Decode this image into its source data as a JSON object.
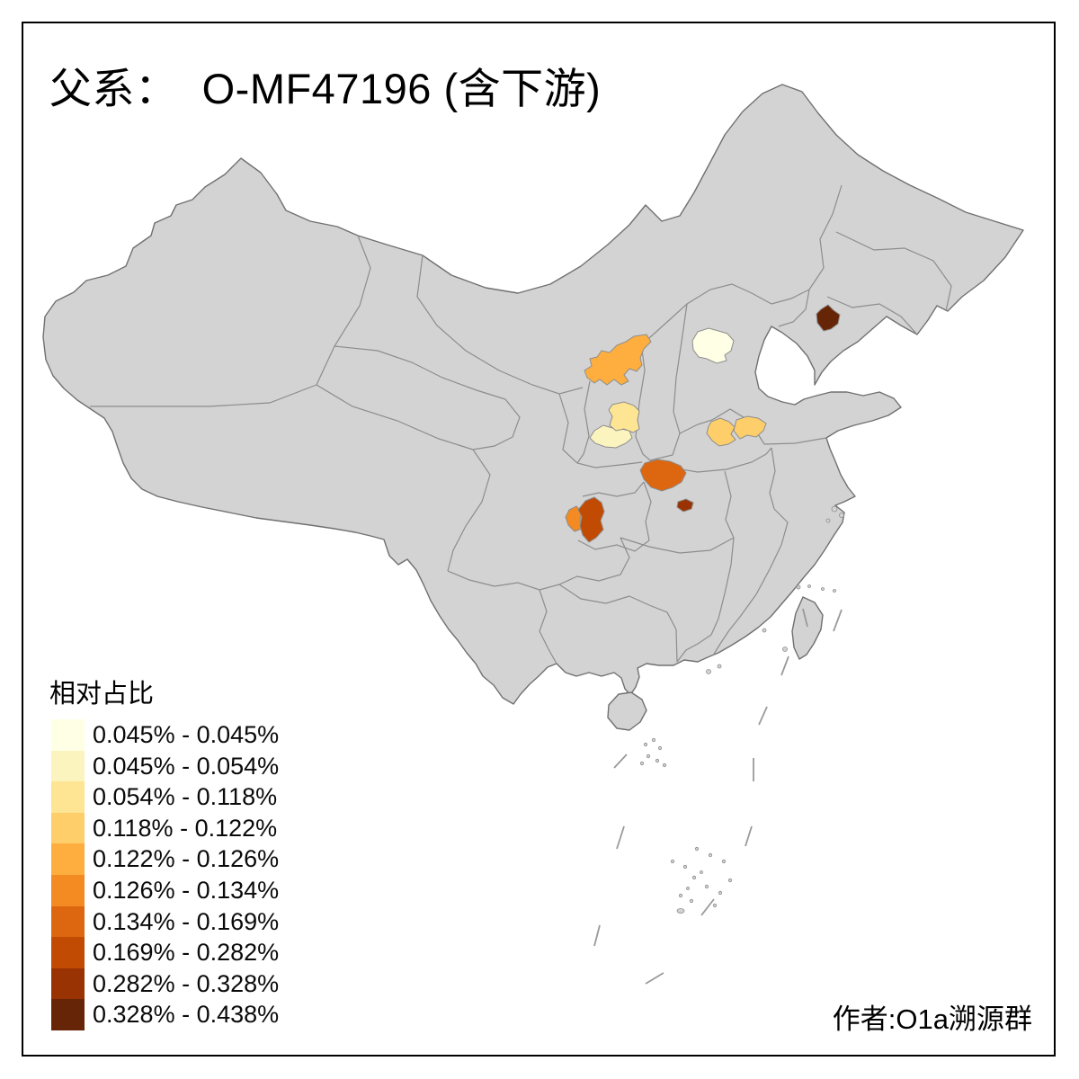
{
  "title": {
    "text": "父系：  O-MF47196 (含下游)"
  },
  "legend": {
    "title": "相对占比",
    "classes": [
      {
        "label": "0.045% - 0.045%",
        "color": "#FFFFE5"
      },
      {
        "label": "0.045% - 0.054%",
        "color": "#FCF4BF"
      },
      {
        "label": "0.054% - 0.118%",
        "color": "#FEE593"
      },
      {
        "label": "0.118% - 0.122%",
        "color": "#FDCE6A"
      },
      {
        "label": "0.122% - 0.126%",
        "color": "#FDAE3F"
      },
      {
        "label": "0.126% - 0.134%",
        "color": "#F38A22"
      },
      {
        "label": "0.134% - 0.169%",
        "color": "#DD6610"
      },
      {
        "label": "0.169% - 0.282%",
        "color": "#C24B03"
      },
      {
        "label": "0.282% - 0.328%",
        "color": "#993303"
      },
      {
        "label": "0.328% - 0.438%",
        "color": "#662506"
      }
    ]
  },
  "attribution": "作者:O1a溯源群",
  "map": {
    "background": "#ffffff",
    "base_fill": "#d3d3d3",
    "outline_color": "#707070",
    "inner_border_color": "#8d8d8d",
    "islet_color": "#bdbdbd",
    "dash_color": "#9a9a9a",
    "regions": [
      {
        "id": "r1",
        "area": "beijing-area",
        "class_index": 0
      },
      {
        "id": "r2",
        "area": "central-shaanxi-south",
        "class_index": 1
      },
      {
        "id": "r3",
        "area": "central-shaanxi-north",
        "class_index": 2
      },
      {
        "id": "r4",
        "area": "henan-west",
        "class_index": 3
      },
      {
        "id": "r5",
        "area": "henan-east",
        "class_index": 3
      },
      {
        "id": "r6",
        "area": "ningxia-north-shaanxi",
        "class_index": 4
      },
      {
        "id": "r7",
        "area": "chongqing-west",
        "class_index": 5
      },
      {
        "id": "r8",
        "area": "south-shaanxi",
        "class_index": 6
      },
      {
        "id": "r9",
        "area": "chongqing-main",
        "class_index": 7
      },
      {
        "id": "r10",
        "area": "west-hubei",
        "class_index": 8
      },
      {
        "id": "r11",
        "area": "central-liaoning",
        "class_index": 9
      }
    ]
  },
  "chart_data": {
    "type": "choropleth",
    "title": "父系：  O-MF47196 (含下游)",
    "legend_title": "相对占比",
    "legend_position": "bottom-left",
    "bins": [
      "0.045% - 0.045%",
      "0.045% - 0.054%",
      "0.054% - 0.118%",
      "0.118% - 0.122%",
      "0.122% - 0.126%",
      "0.126% - 0.134%",
      "0.134% - 0.169%",
      "0.169% - 0.282%",
      "0.282% - 0.328%",
      "0.328% - 0.438%"
    ],
    "region_values": [
      {
        "area": "beijing-area",
        "bin": "0.045% - 0.045%"
      },
      {
        "area": "central-shaanxi-south",
        "bin": "0.045% - 0.054%"
      },
      {
        "area": "central-shaanxi-north",
        "bin": "0.054% - 0.118%"
      },
      {
        "area": "henan-west",
        "bin": "0.118% - 0.122%"
      },
      {
        "area": "henan-east",
        "bin": "0.118% - 0.122%"
      },
      {
        "area": "ningxia-north-shaanxi",
        "bin": "0.122% - 0.126%"
      },
      {
        "area": "chongqing-west",
        "bin": "0.126% - 0.134%"
      },
      {
        "area": "south-shaanxi",
        "bin": "0.134% - 0.169%"
      },
      {
        "area": "chongqing-main",
        "bin": "0.169% - 0.282%"
      },
      {
        "area": "west-hubei",
        "bin": "0.282% - 0.328%"
      },
      {
        "area": "central-liaoning",
        "bin": "0.328% - 0.438%"
      }
    ]
  }
}
